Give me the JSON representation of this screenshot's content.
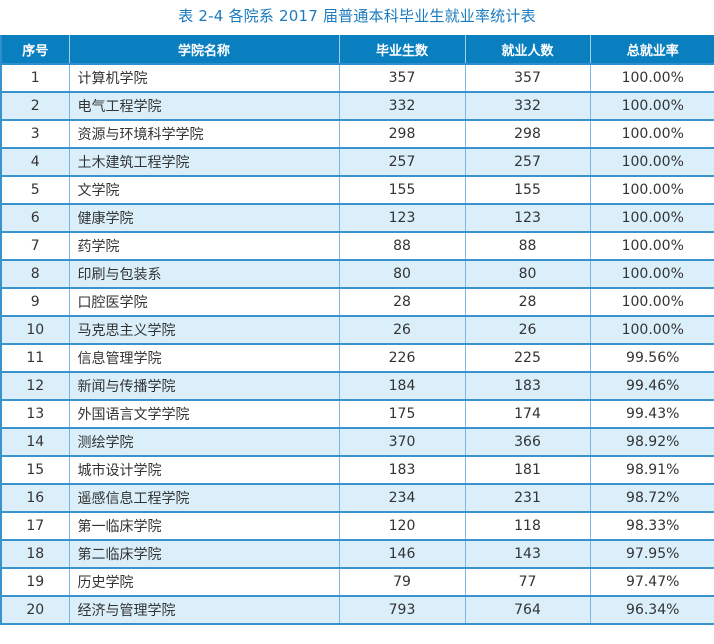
{
  "title": "表 2-4   各院系 2017 届普通本科毕业生就业率统计表",
  "table": {
    "headers": [
      "序号",
      "学院名称",
      "毕业生数",
      "就业人数",
      "总就业率"
    ],
    "rows": [
      [
        "1",
        "计算机学院",
        "357",
        "357",
        "100.00%"
      ],
      [
        "2",
        "电气工程学院",
        "332",
        "332",
        "100.00%"
      ],
      [
        "3",
        "资源与环境科学学院",
        "298",
        "298",
        "100.00%"
      ],
      [
        "4",
        "土木建筑工程学院",
        "257",
        "257",
        "100.00%"
      ],
      [
        "5",
        "文学院",
        "155",
        "155",
        "100.00%"
      ],
      [
        "6",
        "健康学院",
        "123",
        "123",
        "100.00%"
      ],
      [
        "7",
        "药学院",
        "88",
        "88",
        "100.00%"
      ],
      [
        "8",
        "印刷与包装系",
        "80",
        "80",
        "100.00%"
      ],
      [
        "9",
        "口腔医学院",
        "28",
        "28",
        "100.00%"
      ],
      [
        "10",
        "马克思主义学院",
        "26",
        "26",
        "100.00%"
      ],
      [
        "11",
        "信息管理学院",
        "226",
        "225",
        "99.56%"
      ],
      [
        "12",
        "新闻与传播学院",
        "184",
        "183",
        "99.46%"
      ],
      [
        "13",
        "外国语言文学学院",
        "175",
        "174",
        "99.43%"
      ],
      [
        "14",
        "测绘学院",
        "370",
        "366",
        "98.92%"
      ],
      [
        "15",
        "城市设计学院",
        "183",
        "181",
        "98.91%"
      ],
      [
        "16",
        "遥感信息工程学院",
        "234",
        "231",
        "98.72%"
      ],
      [
        "17",
        "第一临床学院",
        "120",
        "118",
        "98.33%"
      ],
      [
        "18",
        "第二临床学院",
        "146",
        "143",
        "97.95%"
      ],
      [
        "19",
        "历史学院",
        "79",
        "77",
        "97.47%"
      ],
      [
        "20",
        "经济与管理学院",
        "793",
        "764",
        "96.34%"
      ]
    ]
  },
  "colors": {
    "title": "#1a7bbf",
    "header_bg": "#0a7fc0",
    "row_alt_bg": "#dbeffa",
    "border": "#3a93cf"
  }
}
